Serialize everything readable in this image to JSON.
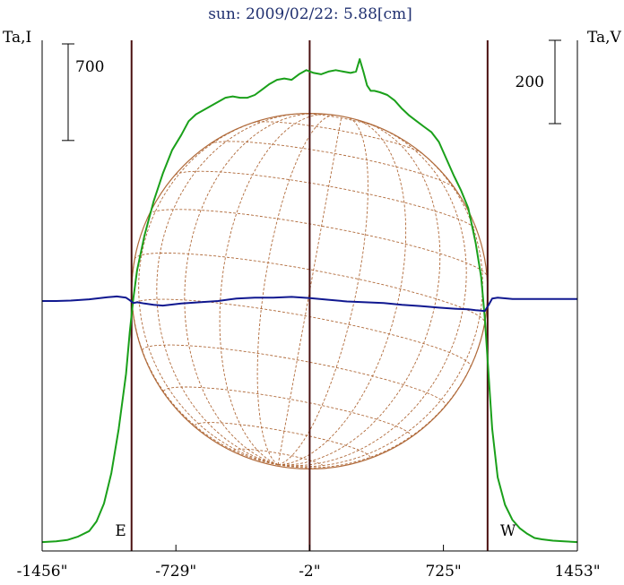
{
  "chart_data": {
    "type": "line",
    "title": "sun: 2009/02/22: 5.88[cm]",
    "title_color": "#203070",
    "left_axis_label": "Ta,I",
    "right_axis_label": "Ta,V",
    "left_scale_bar": "700",
    "right_scale_bar": "200",
    "x_ticks": [
      "-1456\"",
      "-729\"",
      "-2\"",
      "725\"",
      "1453\""
    ],
    "x_tick_values": [
      -1456,
      -729,
      -2,
      725,
      1453
    ],
    "xlim": [
      -1456,
      1453
    ],
    "limb_markers": [
      {
        "label": "E",
        "x": -970
      },
      {
        "label": "W",
        "x": 965
      }
    ],
    "center_line_x": -2,
    "solar_disk": {
      "center_x": -2,
      "radius_arcsec": 967,
      "color": "#b06a3a"
    },
    "series": [
      {
        "name": "I",
        "axis": "left",
        "color": "#1aa01a",
        "x": [
          -1456,
          -1380,
          -1320,
          -1260,
          -1200,
          -1160,
          -1120,
          -1080,
          -1040,
          -1000,
          -980,
          -960,
          -940,
          -900,
          -850,
          -800,
          -750,
          -700,
          -660,
          -620,
          -580,
          -540,
          -500,
          -460,
          -420,
          -380,
          -340,
          -300,
          -260,
          -220,
          -180,
          -140,
          -100,
          -60,
          -20,
          20,
          60,
          100,
          140,
          180,
          220,
          250,
          270,
          290,
          310,
          330,
          350,
          380,
          420,
          460,
          500,
          540,
          580,
          620,
          660,
          700,
          740,
          780,
          820,
          860,
          900,
          930,
          950,
          970,
          990,
          1020,
          1060,
          1100,
          1140,
          1180,
          1220,
          1260,
          1320,
          1380,
          1453
        ],
        "y": [
          -20,
          -15,
          -5,
          20,
          60,
          130,
          260,
          480,
          800,
          1200,
          1500,
          1750,
          1950,
          2200,
          2450,
          2650,
          2820,
          2930,
          3030,
          3080,
          3110,
          3140,
          3170,
          3200,
          3210,
          3200,
          3200,
          3220,
          3260,
          3300,
          3330,
          3340,
          3330,
          3370,
          3400,
          3380,
          3370,
          3390,
          3400,
          3390,
          3380,
          3390,
          3480,
          3390,
          3290,
          3250,
          3250,
          3240,
          3220,
          3180,
          3120,
          3070,
          3030,
          2990,
          2950,
          2880,
          2760,
          2640,
          2530,
          2400,
          2150,
          1900,
          1600,
          1200,
          800,
          450,
          250,
          140,
          80,
          40,
          10,
          0,
          -10,
          -15,
          -20
        ]
      },
      {
        "name": "V",
        "axis": "right",
        "color": "#101890",
        "x": [
          -1456,
          -1380,
          -1300,
          -1200,
          -1100,
          -1050,
          -1000,
          -980,
          -960,
          -940,
          -900,
          -850,
          -800,
          -700,
          -600,
          -500,
          -400,
          -300,
          -200,
          -100,
          0,
          100,
          200,
          300,
          400,
          500,
          600,
          700,
          800,
          860,
          900,
          930,
          950,
          970,
          990,
          1020,
          1100,
          1200,
          1300,
          1453
        ],
        "y": [
          0,
          0,
          1,
          4,
          9,
          11,
          8,
          2,
          -5,
          -3,
          -6,
          -9,
          -11,
          -6,
          -3,
          0,
          6,
          8,
          8,
          10,
          7,
          3,
          -1,
          -3,
          -5,
          -9,
          -12,
          -16,
          -19,
          -20,
          -22,
          -23,
          -24,
          -10,
          6,
          8,
          5,
          5,
          5,
          5
        ]
      }
    ]
  }
}
